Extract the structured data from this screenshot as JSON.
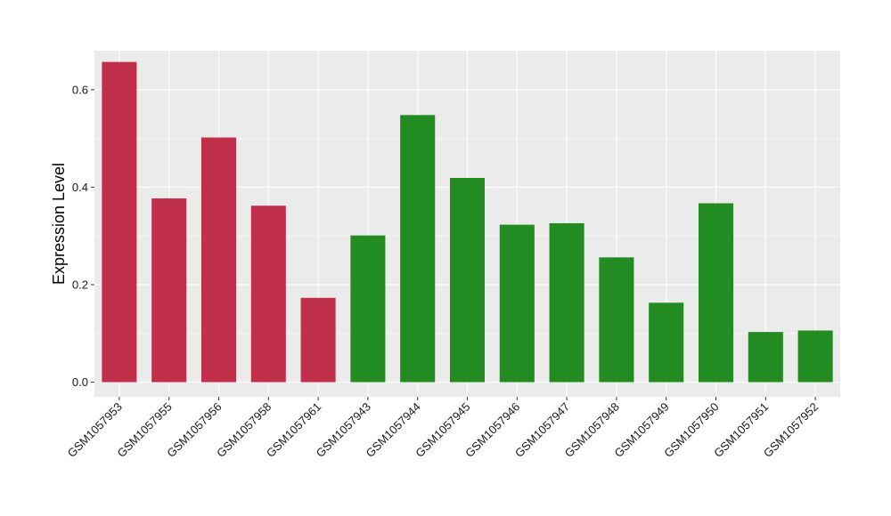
{
  "colors": {
    "panel_background": "#EBEBEB",
    "grid_major": "#FFFFFF",
    "group_a": "#C0304A",
    "group_b": "#228B22"
  },
  "chart_data": {
    "type": "bar",
    "xlabel": "",
    "ylabel": "Expression Level",
    "ylim": [
      -0.03,
      0.68
    ],
    "yticks": [
      0.0,
      0.2,
      0.4,
      0.6
    ],
    "ytick_labels": [
      "0.0",
      "0.2",
      "0.4",
      "0.6"
    ],
    "grid": true,
    "legend": "none",
    "categories": [
      "GSM1057953",
      "GSM1057955",
      "GSM1057956",
      "GSM1057958",
      "GSM1057961",
      "GSM1057943",
      "GSM1057944",
      "GSM1057945",
      "GSM1057946",
      "GSM1057947",
      "GSM1057948",
      "GSM1057949",
      "GSM1057950",
      "GSM1057951",
      "GSM1057952"
    ],
    "values": [
      0.657,
      0.377,
      0.502,
      0.362,
      0.173,
      0.301,
      0.548,
      0.419,
      0.323,
      0.326,
      0.256,
      0.163,
      0.367,
      0.103,
      0.106
    ],
    "bar_groups": [
      "a",
      "a",
      "a",
      "a",
      "a",
      "b",
      "b",
      "b",
      "b",
      "b",
      "b",
      "b",
      "b",
      "b",
      "b"
    ]
  }
}
